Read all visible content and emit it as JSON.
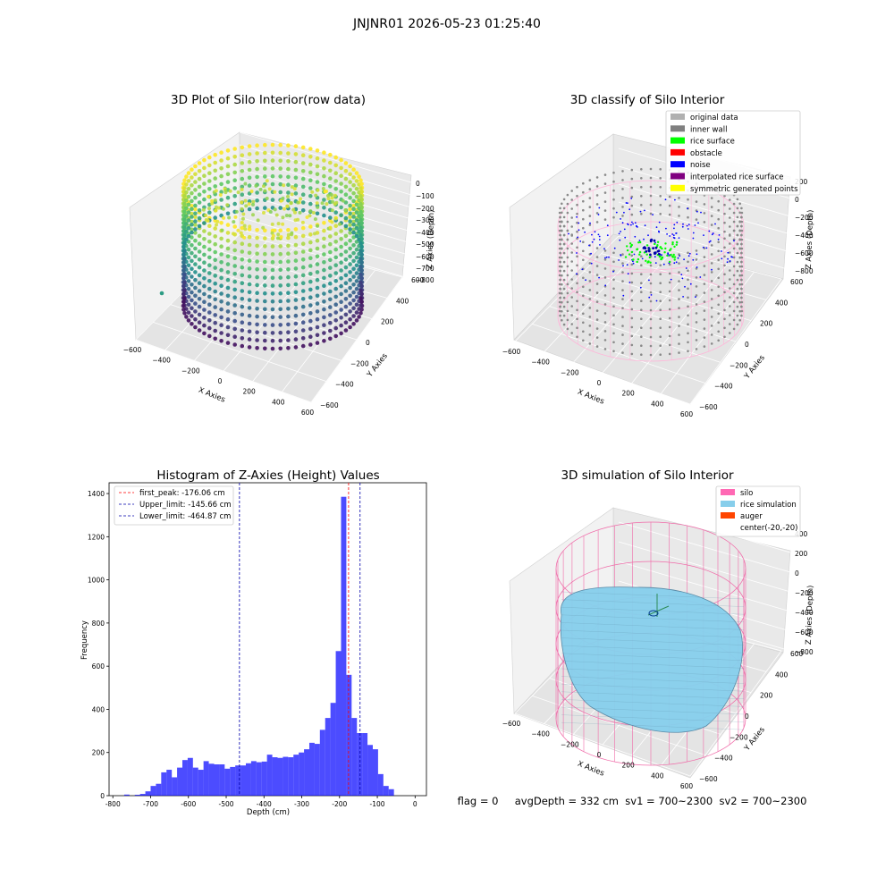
{
  "figure": {
    "suptitle": "JNJNR01 2026-05-23 01:25:40",
    "footer": "flag = 0     avgDepth = 332 cm  sv1 = 700~2300  sv2 = 700~2300"
  },
  "chart_data": [
    {
      "type": "scatter",
      "subtype": "3d",
      "title": "3D Plot of Silo Interior(row data)",
      "xlabel": "X Axies",
      "ylabel": "Y Axies",
      "zlabel": "Z Axies (Depth)",
      "x_ticks": [
        "−600",
        "−400",
        "−200",
        "0",
        "200",
        "400",
        "600"
      ],
      "y_ticks": [
        "−600",
        "−400",
        "−200",
        "0",
        "200",
        "400",
        "600"
      ],
      "z_ticks": [
        "0",
        "−100",
        "−200",
        "−300",
        "−400",
        "−500",
        "−600",
        "−700",
        "−800"
      ],
      "colormap": "viridis",
      "grid": true,
      "description_of_points": "ring-shaped silo wall point cloud with depth from about -800 to 0"
    },
    {
      "type": "scatter",
      "subtype": "3d",
      "title": "3D classify of Silo Interior",
      "x_ticks": [
        "−600",
        "−400",
        "−200",
        "0",
        "200",
        "400",
        "600"
      ],
      "y_ticks": [
        "−600",
        "−400",
        "−200",
        "0",
        "200",
        "400",
        "600"
      ],
      "z_ticks": [
        "200",
        "0",
        "−200",
        "−400",
        "−600",
        "−800"
      ],
      "xlabel": "X Axies",
      "ylabel": "Y Axies",
      "zlabel": "Z Axies (Depth)",
      "legend_position": "top-right",
      "legend": [
        {
          "label": "original data",
          "color": "#b0b0b0"
        },
        {
          "label": "inner wall",
          "color": "#808080"
        },
        {
          "label": "rice surface",
          "color": "#00ff00"
        },
        {
          "label": "obstacle",
          "color": "#ff0000"
        },
        {
          "label": "noise",
          "color": "#0000ff"
        },
        {
          "label": "interpolated rice surface",
          "color": "#800080"
        },
        {
          "label": "symmetric generated points",
          "color": "#ffff00"
        }
      ],
      "grid": true
    },
    {
      "type": "bar",
      "subtype": "histogram",
      "title": "Histogram of Z-Axies (Height) Values",
      "xlabel": "Depth (cm)",
      "ylabel": "Frequency",
      "xlim": [
        -810,
        30
      ],
      "ylim": [
        0,
        1450
      ],
      "x_ticks": [
        -800,
        -700,
        -600,
        -500,
        -400,
        -300,
        -200,
        -100,
        0
      ],
      "y_ticks": [
        0,
        200,
        400,
        600,
        800,
        1000,
        1200,
        1400
      ],
      "bar_color": "#0000ff",
      "bar_opacity": 0.7,
      "bins": [
        {
          "left": -770,
          "right": -756,
          "count": 5
        },
        {
          "left": -756,
          "right": -742,
          "count": 0
        },
        {
          "left": -742,
          "right": -728,
          "count": 4
        },
        {
          "left": -728,
          "right": -714,
          "count": 8
        },
        {
          "left": -714,
          "right": -700,
          "count": 20
        },
        {
          "left": -700,
          "right": -686,
          "count": 45
        },
        {
          "left": -686,
          "right": -672,
          "count": 55
        },
        {
          "left": -672,
          "right": -658,
          "count": 108
        },
        {
          "left": -658,
          "right": -644,
          "count": 120
        },
        {
          "left": -644,
          "right": -630,
          "count": 85
        },
        {
          "left": -630,
          "right": -616,
          "count": 130
        },
        {
          "left": -616,
          "right": -602,
          "count": 165
        },
        {
          "left": -602,
          "right": -588,
          "count": 175
        },
        {
          "left": -588,
          "right": -574,
          "count": 130
        },
        {
          "left": -574,
          "right": -560,
          "count": 120
        },
        {
          "left": -560,
          "right": -546,
          "count": 160
        },
        {
          "left": -546,
          "right": -532,
          "count": 148
        },
        {
          "left": -532,
          "right": -518,
          "count": 145
        },
        {
          "left": -518,
          "right": -504,
          "count": 145
        },
        {
          "left": -504,
          "right": -490,
          "count": 125
        },
        {
          "left": -490,
          "right": -476,
          "count": 133
        },
        {
          "left": -476,
          "right": -462,
          "count": 140
        },
        {
          "left": -462,
          "right": -448,
          "count": 140
        },
        {
          "left": -448,
          "right": -434,
          "count": 150
        },
        {
          "left": -434,
          "right": -420,
          "count": 160
        },
        {
          "left": -420,
          "right": -406,
          "count": 155
        },
        {
          "left": -406,
          "right": -392,
          "count": 158
        },
        {
          "left": -392,
          "right": -378,
          "count": 190
        },
        {
          "left": -378,
          "right": -364,
          "count": 178
        },
        {
          "left": -364,
          "right": -350,
          "count": 175
        },
        {
          "left": -350,
          "right": -336,
          "count": 180
        },
        {
          "left": -336,
          "right": -322,
          "count": 178
        },
        {
          "left": -322,
          "right": -308,
          "count": 190
        },
        {
          "left": -308,
          "right": -294,
          "count": 200
        },
        {
          "left": -294,
          "right": -280,
          "count": 215
        },
        {
          "left": -280,
          "right": -266,
          "count": 245
        },
        {
          "left": -266,
          "right": -252,
          "count": 240
        },
        {
          "left": -252,
          "right": -238,
          "count": 305
        },
        {
          "left": -238,
          "right": -224,
          "count": 360
        },
        {
          "left": -224,
          "right": -210,
          "count": 430
        },
        {
          "left": -210,
          "right": -196,
          "count": 670
        },
        {
          "left": -196,
          "right": -182,
          "count": 1385
        },
        {
          "left": -182,
          "right": -168,
          "count": 560
        },
        {
          "left": -168,
          "right": -154,
          "count": 360
        },
        {
          "left": -154,
          "right": -140,
          "count": 290
        },
        {
          "left": -140,
          "right": -126,
          "count": 290
        },
        {
          "left": -126,
          "right": -112,
          "count": 235
        },
        {
          "left": -112,
          "right": -98,
          "count": 215
        },
        {
          "left": -98,
          "right": -84,
          "count": 100
        },
        {
          "left": -84,
          "right": -70,
          "count": 45
        },
        {
          "left": -70,
          "right": -56,
          "count": 30
        }
      ],
      "vlines": [
        {
          "label": "first_peak: -176.06 cm",
          "x": -176.06,
          "color": "#ff0000"
        },
        {
          "label": "Upper_limit: -145.66 cm",
          "x": -145.66,
          "color": "#0000aa"
        },
        {
          "label": "Lower_limit: -464.87 cm",
          "x": -464.87,
          "color": "#0000aa"
        }
      ],
      "legend_position": "top-left",
      "grid": false
    },
    {
      "type": "area",
      "subtype": "3d-surface",
      "title": "3D simulation of Silo Interior",
      "x_ticks": [
        "−600",
        "−400",
        "−200",
        "0",
        "200",
        "400",
        "600"
      ],
      "y_ticks": [
        "−600",
        "−400",
        "−200",
        "0",
        "200",
        "400",
        "600"
      ],
      "z_ticks": [
        "400",
        "200",
        "0",
        "−200",
        "−400",
        "−600",
        "−800"
      ],
      "xlabel": "X Axies",
      "ylabel": "Y Axies",
      "zlabel": "Z Axies (Depth)",
      "legend_position": "top-right",
      "legend": [
        {
          "label": "silo",
          "color": "#ff69b4"
        },
        {
          "label": "rice simulation",
          "color": "#87ceeb"
        },
        {
          "label": "auger",
          "color": "#ff4500"
        },
        {
          "label": "center(-20,-20)",
          "color": ""
        }
      ],
      "grid": true
    }
  ]
}
